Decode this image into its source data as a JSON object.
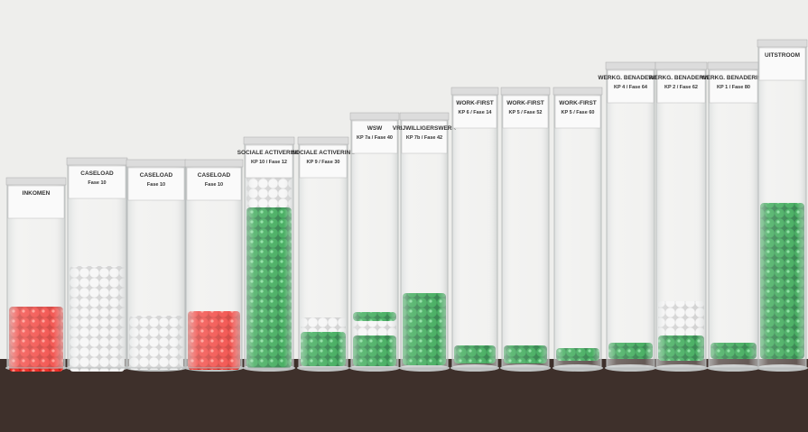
{
  "tubes": [
    {
      "lines": [
        "INKOMEN"
      ]
    },
    {
      "lines": [
        "CASELOAD",
        "Fase 10"
      ]
    },
    {
      "lines": [
        "CASELOAD",
        "Fase 10"
      ]
    },
    {
      "lines": [
        "CASELOAD",
        "Fase 10"
      ]
    },
    {
      "lines": [
        "SOCIALE ACTIVERING",
        "KP 10 / Fase 12"
      ]
    },
    {
      "lines": [
        "SOCIALE ACTIVERING",
        "KP 9 / Fase 30"
      ]
    },
    {
      "lines": [
        "WSW",
        "KP 7a / Fase 40"
      ]
    },
    {
      "lines": [
        "VRIJWILLIGERSWERK",
        "KP 7b / Fase 42"
      ]
    },
    {
      "lines": [
        "WORK-FIRST",
        "KP 6 / Fase 14"
      ]
    },
    {
      "lines": [
        "WORK-FIRST",
        "KP 5 / Fase 52"
      ]
    },
    {
      "lines": [
        "WORK-FIRST",
        "KP 5 / Fase 60"
      ]
    },
    {
      "lines": [
        "WERKG. BENADERING",
        "KP 4 / Fase 64"
      ]
    },
    {
      "lines": [
        "WERKG. BENADERING",
        "KP 2 / Fase 62"
      ]
    },
    {
      "lines": [
        "WERKG. BENADERING",
        "KP 1 / Fase 80"
      ]
    },
    {
      "lines": [
        "UITSTROOM"
      ]
    }
  ]
}
